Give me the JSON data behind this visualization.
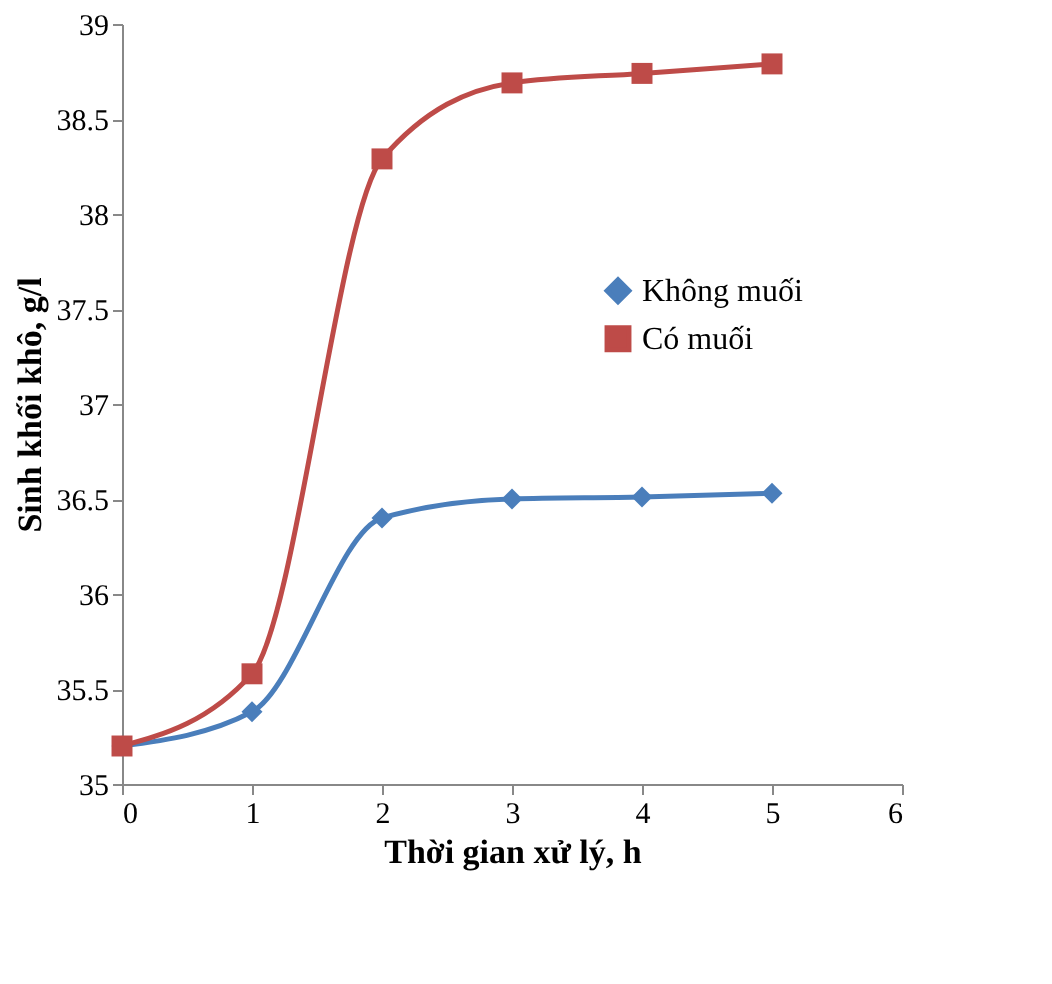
{
  "chart_data": {
    "type": "line",
    "xlabel": "Thời gian xử lý, h",
    "ylabel": "Sinh khối khô, g/l",
    "x": [
      0,
      1,
      2,
      3,
      4,
      5
    ],
    "series": [
      {
        "name": "Không muối",
        "color": "#4a7ebb",
        "marker": "diamond",
        "values": [
          35.2,
          35.38,
          36.4,
          36.5,
          36.51,
          36.53
        ]
      },
      {
        "name": "Có muối",
        "color": "#be4b48",
        "marker": "square",
        "values": [
          35.2,
          35.58,
          38.29,
          38.69,
          38.74,
          38.79
        ]
      }
    ],
    "xlim": [
      0,
      6
    ],
    "xticks": [
      0,
      1,
      2,
      3,
      4,
      5,
      6
    ],
    "ylim": [
      35,
      39
    ],
    "yticks": [
      35,
      35.5,
      36,
      36.5,
      37,
      37.5,
      38,
      38.5,
      39
    ],
    "grid": false,
    "legend": "right",
    "line_style": "solid"
  }
}
